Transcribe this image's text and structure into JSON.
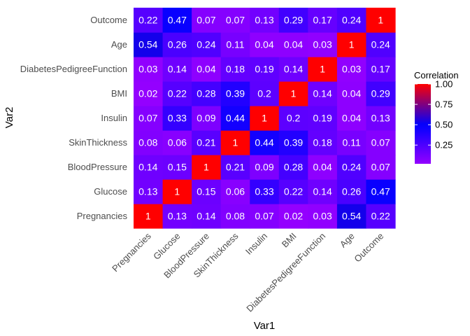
{
  "chart_data": {
    "type": "heatmap",
    "xlabel": "Var1",
    "ylabel": "Var2",
    "x_categories": [
      "Pregnancies",
      "Glucose",
      "BloodPressure",
      "SkinThickness",
      "Insulin",
      "BMI",
      "DiabetesPedigreeFunction",
      "Age",
      "Outcome"
    ],
    "y_categories": [
      "Pregnancies",
      "Glucose",
      "BloodPressure",
      "SkinThickness",
      "Insulin",
      "BMI",
      "DiabetesPedigreeFunction",
      "Age",
      "Outcome"
    ],
    "values": [
      [
        1,
        0.13,
        0.14,
        0.08,
        0.07,
        0.02,
        0.03,
        0.54,
        0.22
      ],
      [
        0.13,
        1,
        0.15,
        0.06,
        0.33,
        0.22,
        0.14,
        0.26,
        0.47
      ],
      [
        0.14,
        0.15,
        1,
        0.21,
        0.09,
        0.28,
        0.04,
        0.24,
        0.07
      ],
      [
        0.08,
        0.06,
        0.21,
        1,
        0.44,
        0.39,
        0.18,
        0.11,
        0.07
      ],
      [
        0.07,
        0.33,
        0.09,
        0.44,
        1,
        0.2,
        0.19,
        0.04,
        0.13
      ],
      [
        0.02,
        0.22,
        0.28,
        0.39,
        0.2,
        1,
        0.14,
        0.04,
        0.29
      ],
      [
        0.03,
        0.14,
        0.04,
        0.18,
        0.19,
        0.14,
        1,
        0.03,
        0.17
      ],
      [
        0.54,
        0.26,
        0.24,
        0.11,
        0.04,
        0.04,
        0.03,
        1,
        0.24
      ],
      [
        0.22,
        0.47,
        0.07,
        0.07,
        0.13,
        0.29,
        0.17,
        0.24,
        1
      ]
    ],
    "legend": {
      "title": "Correlation",
      "ticks": [
        0.25,
        0.5,
        0.75,
        1.0
      ],
      "tick_labels": [
        "0.25",
        "0.50",
        "0.75",
        "1.00"
      ],
      "range": [
        0.02,
        1
      ],
      "colors": {
        "low": "#9400ff",
        "mid": "#0000ff",
        "high": "#ff0000"
      },
      "midpoint": 0.5
    }
  }
}
